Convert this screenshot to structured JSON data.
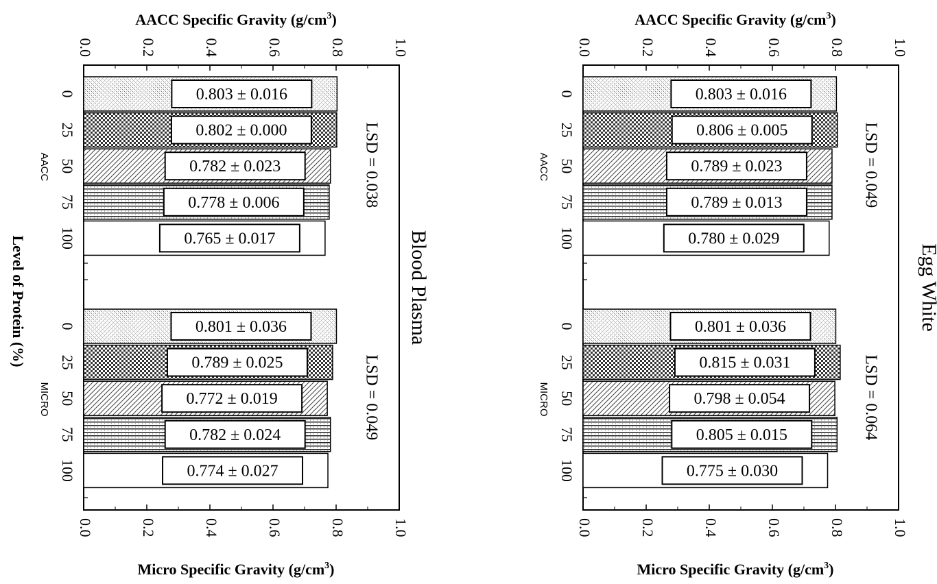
{
  "page": {
    "top_axis_title": "AACC Specific Gravity (g/cm",
    "bottom_axis_title": "Micro Specific Gravity (g/cm",
    "axis_unit_exponent": "3",
    "y_axis_title": "Level of Protein (%)",
    "tick_labels": [
      "0.0",
      "0.2",
      "0.4",
      "0.6",
      "0.8",
      "1.0"
    ]
  },
  "chart_data": [
    {
      "type": "bar",
      "orientation": "horizontal",
      "title": "Blood Plasma",
      "x_axis_top_label": "AACC Specific Gravity (g/cm3)",
      "x_axis_bottom_label": "Micro Specific Gravity (g/cm3)",
      "y_axis_label": "Level of Protein (%)",
      "xlim": [
        0.0,
        1.0
      ],
      "groups": [
        {
          "name": "AACC",
          "categories": [
            "0",
            "25",
            "50",
            "75",
            "100"
          ],
          "values": [
            0.803,
            0.802,
            0.782,
            0.778,
            0.765
          ],
          "labels": [
            "0.803 ± 0.016",
            "0.802 ± 0.000",
            "0.782 ± 0.023",
            "0.778 ± 0.006",
            "0.765 ± 0.017"
          ],
          "lsd": "LSD = 0.038"
        },
        {
          "name": "MICRO",
          "categories": [
            "0",
            "25",
            "50",
            "75",
            "100"
          ],
          "values": [
            0.801,
            0.789,
            0.772,
            0.782,
            0.774
          ],
          "labels": [
            "0.801 ± 0.036",
            "0.789 ± 0.025",
            "0.772 ± 0.019",
            "0.782 ± 0.024",
            "0.774 ± 0.027"
          ],
          "lsd": "LSD = 0.049"
        }
      ]
    },
    {
      "type": "bar",
      "orientation": "horizontal",
      "title": "Egg White",
      "x_axis_top_label": "AACC Specific Gravity (g/cm3)",
      "x_axis_bottom_label": "Micro Specific Gravity (g/cm3)",
      "xlim": [
        0.0,
        1.0
      ],
      "groups": [
        {
          "name": "AACC",
          "categories": [
            "0",
            "25",
            "50",
            "75",
            "100"
          ],
          "values": [
            0.803,
            0.806,
            0.789,
            0.789,
            0.78
          ],
          "labels": [
            "0.803 ± 0.016",
            "0.806 ± 0.005",
            "0.789 ± 0.023",
            "0.789 ± 0.013",
            "0.780 ± 0.029"
          ],
          "lsd": "LSD = 0.049"
        },
        {
          "name": "MICRO",
          "categories": [
            "0",
            "25",
            "50",
            "75",
            "100"
          ],
          "values": [
            0.801,
            0.815,
            0.798,
            0.805,
            0.775
          ],
          "labels": [
            "0.801 ± 0.036",
            "0.815 ± 0.031",
            "0.798 ± 0.054",
            "0.805 ± 0.015",
            "0.775 ± 0.030"
          ],
          "lsd": "LSD = 0.064"
        }
      ]
    }
  ]
}
